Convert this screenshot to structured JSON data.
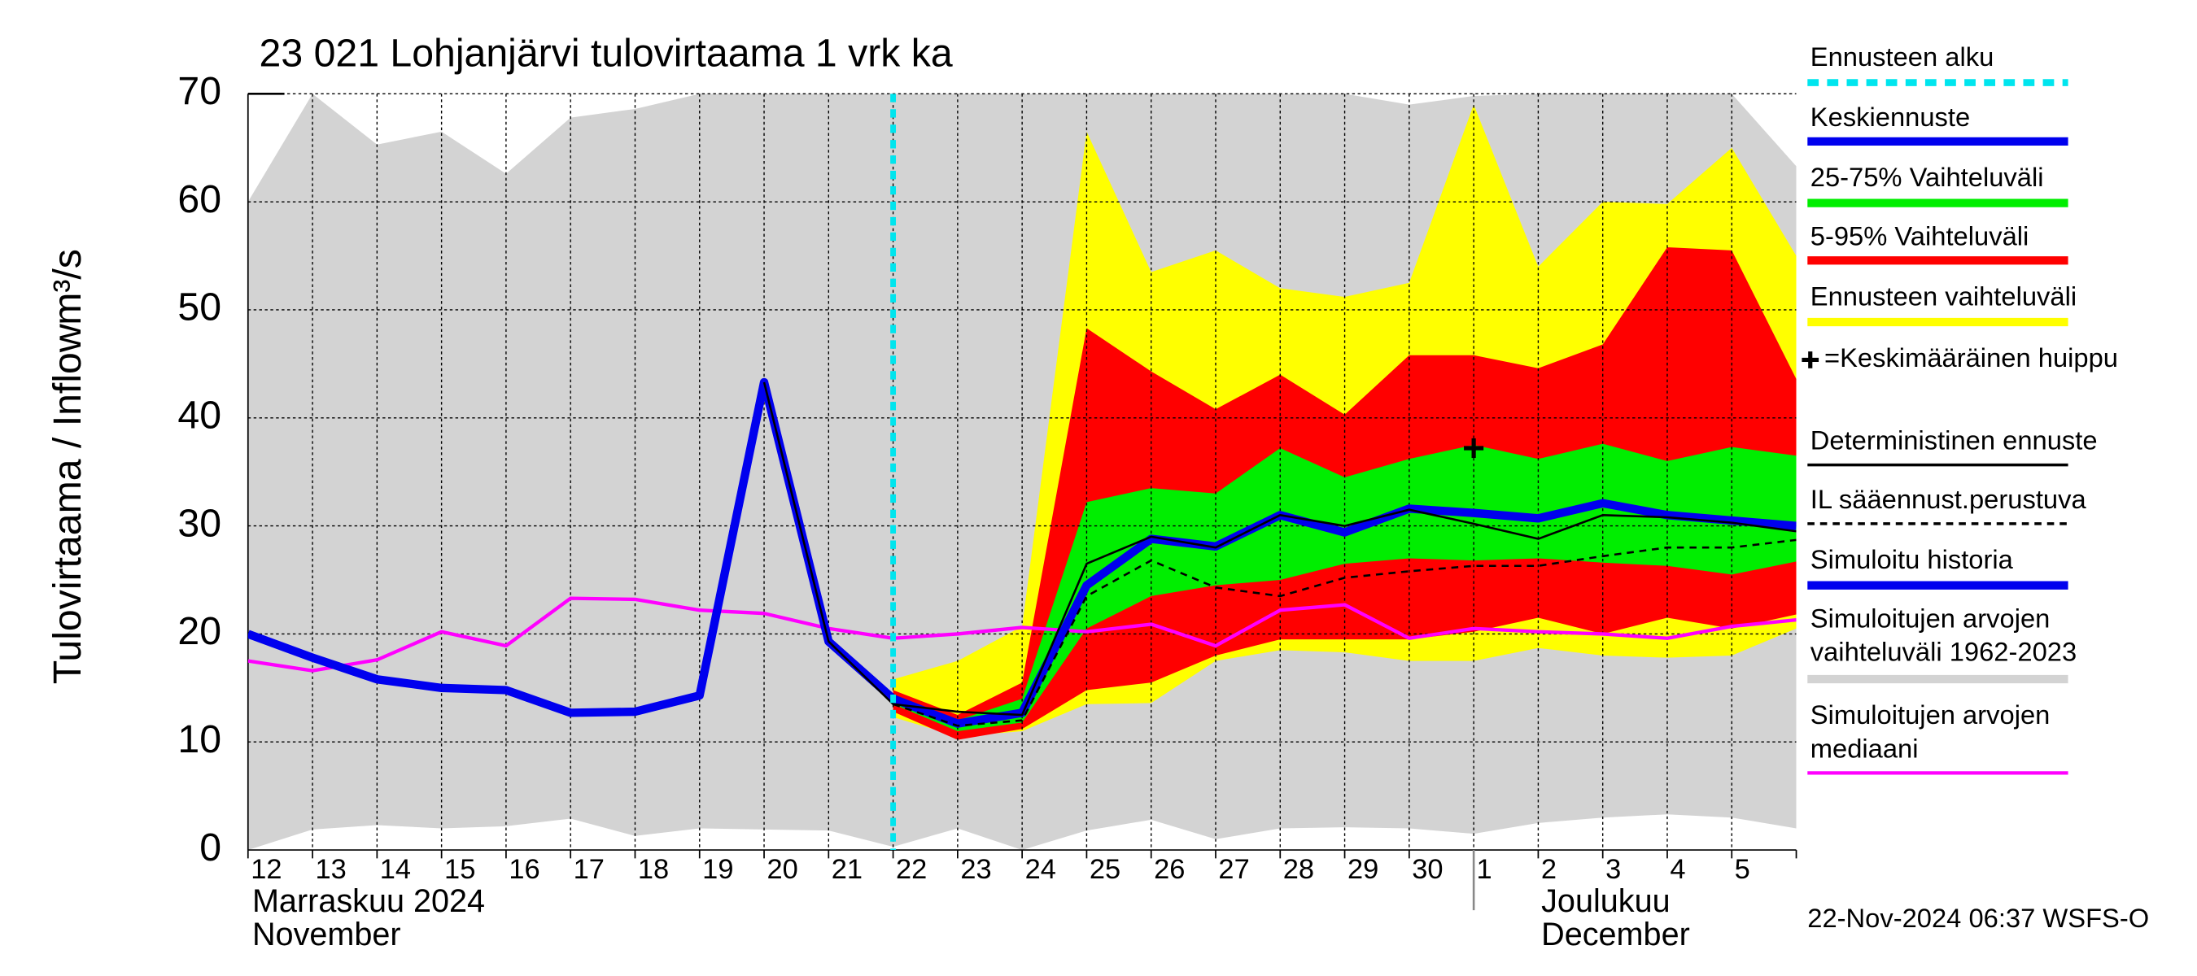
{
  "chart_data": {
    "type": "band-line",
    "title": "23 021 Lohjanjärvi tulovirtaama 1 vrk ka",
    "y_label": "Tulovirtaama / Inflow",
    "y_unit": "m³/s",
    "month_labels": [
      "Marraskuu 2024",
      "November",
      "Joulukuu",
      "December"
    ],
    "timestamp": "22-Nov-2024 06:37 WSFS-O",
    "categories": [
      "12",
      "13",
      "14",
      "15",
      "16",
      "17",
      "18",
      "19",
      "20",
      "21",
      "22",
      "23",
      "24",
      "25",
      "26",
      "27",
      "28",
      "29",
      "30",
      "1",
      "2",
      "3",
      "4",
      "5",
      null
    ],
    "ylim": [
      0,
      70
    ],
    "yticks": [
      0,
      10,
      20,
      30,
      40,
      50,
      60,
      70
    ],
    "grid": true,
    "forecast_start": {
      "name": "Ennusteen alku",
      "color": "#00e5ee",
      "category": "22"
    },
    "bands": [
      {
        "name": "Simuloitujen arvojen vaihteluväli 1962-2023",
        "color": "#d3d3d3",
        "upper": [
          60,
          70,
          65.3,
          66.5,
          62.6,
          67.8,
          68.6,
          70,
          70,
          70,
          70,
          70,
          70,
          70,
          70,
          70,
          70,
          70,
          69,
          69.8,
          70,
          70,
          70,
          70,
          63.3
        ],
        "lower": [
          0,
          1.9,
          2.3,
          2.0,
          2.2,
          2.9,
          1.3,
          2.0,
          1.9,
          1.8,
          0.3,
          2.0,
          0,
          1.8,
          2.8,
          1.0,
          2.0,
          2.1,
          2.0,
          1.5,
          2.5,
          3.0,
          3.3,
          3.0,
          2.0
        ]
      },
      {
        "name": "Ennusteen vaihteluväli",
        "color": "#ffff00",
        "upper": [
          null,
          null,
          null,
          null,
          null,
          null,
          null,
          null,
          null,
          null,
          15.8,
          17.5,
          20.7,
          66.5,
          53.5,
          55.5,
          52,
          51.2,
          52.5,
          69,
          54,
          60,
          59.8,
          65,
          55
        ],
        "lower": [
          null,
          null,
          null,
          null,
          null,
          null,
          null,
          null,
          null,
          null,
          12.3,
          10.5,
          11,
          13.5,
          13.6,
          17.5,
          18.5,
          18.3,
          17.5,
          17.5,
          18.7,
          18,
          17.8,
          18,
          20.5
        ]
      },
      {
        "name": "5-95% Vaihteluväli",
        "color": "#ff0000",
        "upper": [
          null,
          null,
          null,
          null,
          null,
          null,
          null,
          null,
          null,
          null,
          14.8,
          12.5,
          15.5,
          48.3,
          44.3,
          40.8,
          44,
          40.3,
          45.8,
          45.8,
          44.6,
          46.8,
          55.8,
          55.5,
          43.6
        ],
        "lower": [
          null,
          null,
          null,
          null,
          null,
          null,
          null,
          null,
          null,
          null,
          12.8,
          10.2,
          11.2,
          14.8,
          15.5,
          18,
          19.5,
          19.5,
          19.5,
          20.2,
          21.5,
          20,
          21.5,
          20.5,
          21.8
        ]
      },
      {
        "name": "25-75% Vaihteluväli",
        "color": "#00ee00",
        "upper": [
          null,
          null,
          null,
          null,
          null,
          null,
          null,
          null,
          null,
          null,
          14.3,
          12,
          14,
          32.2,
          33.5,
          33,
          37.2,
          34.5,
          36.2,
          37.5,
          36.2,
          37.6,
          36,
          37.3,
          36.5
        ],
        "lower": [
          null,
          null,
          null,
          null,
          null,
          null,
          null,
          null,
          null,
          null,
          13.5,
          11,
          11.8,
          20.5,
          23.5,
          24.5,
          25,
          26.5,
          27,
          26.8,
          27,
          26.6,
          26.3,
          25.5,
          26.7
        ]
      }
    ],
    "series": [
      {
        "name": "Simuloitujen arvojen mediaani",
        "color": "#ff00ff",
        "line_width": 2.5,
        "dashed": false,
        "values": [
          17.5,
          16.6,
          17.6,
          20.2,
          18.9,
          23.3,
          23.2,
          22.2,
          21.9,
          20.5,
          19.6,
          20.0,
          20.6,
          20.2,
          20.9,
          18.9,
          22.2,
          22.7,
          19.6,
          20.5,
          20.2,
          20.0,
          19.6,
          20.7,
          21.3
        ]
      },
      {
        "name": "Simuloitu historia",
        "color": "#0000ee",
        "line_width": 6,
        "dashed": false,
        "values": [
          20.0,
          17.8,
          15.8,
          15.0,
          14.8,
          12.7,
          12.8,
          14.3,
          43.3,
          19.3,
          14.0,
          null,
          null,
          null,
          null,
          null,
          null,
          null,
          null,
          null,
          null,
          null,
          null,
          null,
          null
        ]
      },
      {
        "name": "Keskiennuste",
        "color": "#0000ee",
        "line_width": 6,
        "dashed": false,
        "values": [
          null,
          null,
          null,
          null,
          null,
          null,
          null,
          null,
          null,
          null,
          14.0,
          11.7,
          12.7,
          24.5,
          28.8,
          28.1,
          31.0,
          29.4,
          31.6,
          31.2,
          30.7,
          32.1,
          31.0,
          30.5,
          30.0
        ]
      },
      {
        "name": "Deterministinen ennuste",
        "color": "#000000",
        "line_width": 1.5,
        "dashed": false,
        "values": [
          null,
          null,
          null,
          null,
          null,
          null,
          null,
          null,
          43.3,
          19.3,
          13.5,
          12.8,
          12.5,
          26.5,
          29,
          28,
          31,
          30,
          31.5,
          30.2,
          28.8,
          31,
          30.8,
          30.3,
          29.5
        ]
      },
      {
        "name": "IL sääennust.perustuva",
        "color": "#000000",
        "line_width": 1.5,
        "dashed": true,
        "values": [
          null,
          null,
          null,
          null,
          null,
          null,
          null,
          null,
          null,
          null,
          13.5,
          11.5,
          12,
          23.5,
          26.8,
          24.3,
          23.5,
          25.2,
          25.8,
          26.3,
          26.3,
          27.2,
          28.0,
          28.0,
          28.7
        ]
      }
    ],
    "peak": {
      "name": "=Keskimääräinen huippu",
      "color": "#000000",
      "category": "1",
      "value": 37.2
    }
  }
}
